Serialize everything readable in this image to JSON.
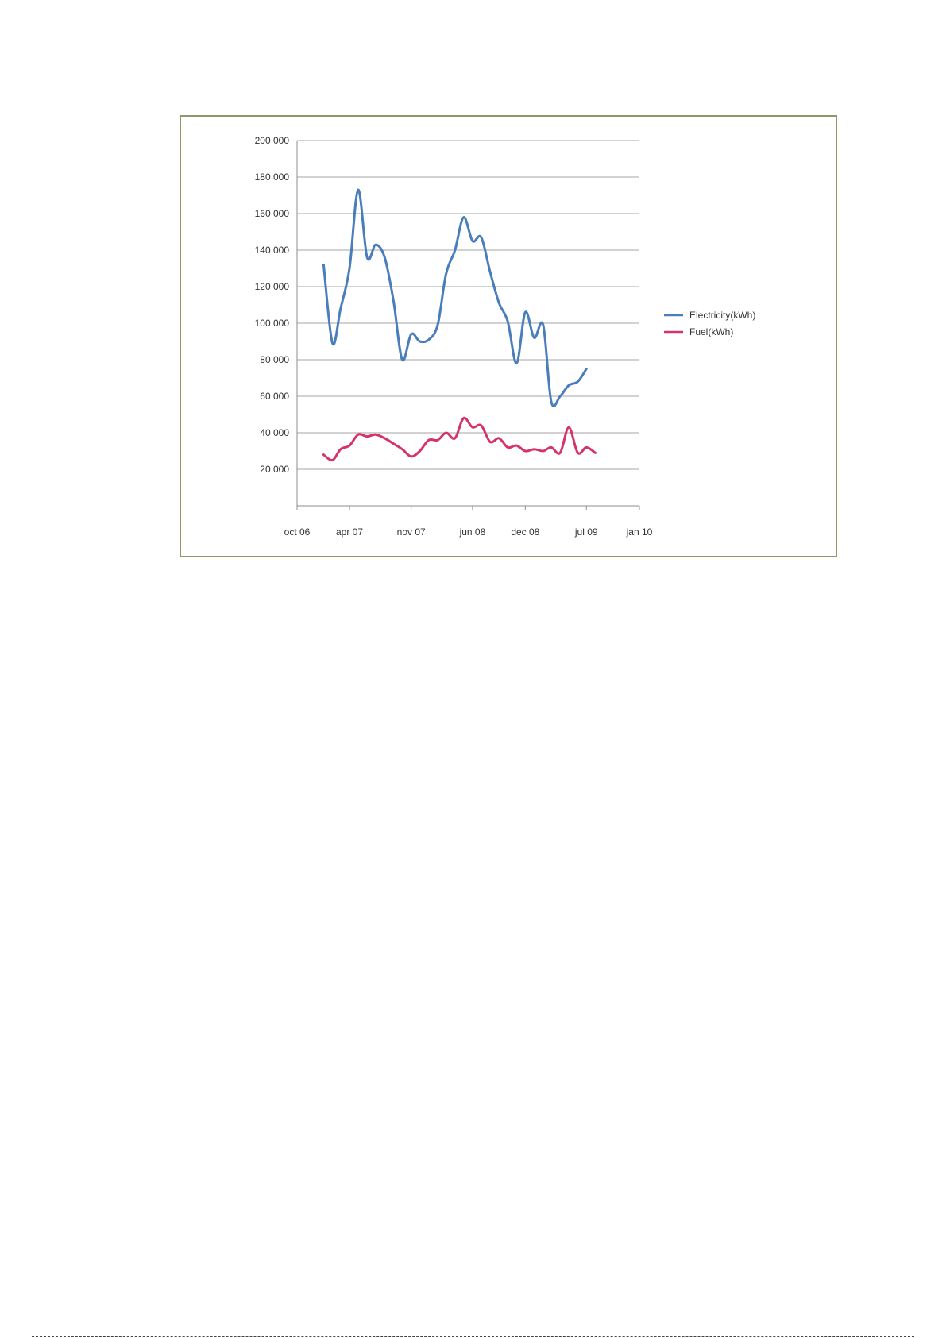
{
  "chart_data": {
    "type": "line",
    "title": "",
    "xlabel": "",
    "ylabel": "",
    "x_axis": {
      "type": "date",
      "range": [
        "2006-10-01",
        "2010-01-01"
      ],
      "ticks": [
        {
          "date": "2006-10-01",
          "label": "oct 06"
        },
        {
          "date": "2007-04-01",
          "label": "apr 07"
        },
        {
          "date": "2007-11-01",
          "label": "nov 07"
        },
        {
          "date": "2008-06-01",
          "label": "jun 08"
        },
        {
          "date": "2008-12-01",
          "label": "dec 08"
        },
        {
          "date": "2009-07-01",
          "label": "jul 09"
        },
        {
          "date": "2010-01-01",
          "label": "jan 10"
        }
      ]
    },
    "y_axis": {
      "range": [
        0,
        200000
      ],
      "ticks": [
        {
          "value": 20000,
          "label": "20 000"
        },
        {
          "value": 40000,
          "label": "40 000"
        },
        {
          "value": 60000,
          "label": "60 000"
        },
        {
          "value": 80000,
          "label": "80 000"
        },
        {
          "value": 100000,
          "label": "100 000"
        },
        {
          "value": 120000,
          "label": "120 000"
        },
        {
          "value": 140000,
          "label": "140 000"
        },
        {
          "value": 160000,
          "label": "160 000"
        },
        {
          "value": 180000,
          "label": "180 000"
        },
        {
          "value": 200000,
          "label": "200 000"
        }
      ]
    },
    "grid": "horizontal",
    "legend_position": "right",
    "series": [
      {
        "name": "Electricity(kWh)",
        "color": "#4a7ebb",
        "points": [
          {
            "x": "2007-01-01",
            "y": 132000
          },
          {
            "x": "2007-02-01",
            "y": 89000
          },
          {
            "x": "2007-03-01",
            "y": 108000
          },
          {
            "x": "2007-04-01",
            "y": 130000
          },
          {
            "x": "2007-05-01",
            "y": 173000
          },
          {
            "x": "2007-06-01",
            "y": 136000
          },
          {
            "x": "2007-07-01",
            "y": 143000
          },
          {
            "x": "2007-08-01",
            "y": 136000
          },
          {
            "x": "2007-09-01",
            "y": 112000
          },
          {
            "x": "2007-10-01",
            "y": 80000
          },
          {
            "x": "2007-11-01",
            "y": 94000
          },
          {
            "x": "2007-12-01",
            "y": 90000
          },
          {
            "x": "2008-01-01",
            "y": 91000
          },
          {
            "x": "2008-02-01",
            "y": 99000
          },
          {
            "x": "2008-03-01",
            "y": 127000
          },
          {
            "x": "2008-04-01",
            "y": 140000
          },
          {
            "x": "2008-05-01",
            "y": 158000
          },
          {
            "x": "2008-06-01",
            "y": 145000
          },
          {
            "x": "2008-07-01",
            "y": 147000
          },
          {
            "x": "2008-08-01",
            "y": 128000
          },
          {
            "x": "2008-09-01",
            "y": 111000
          },
          {
            "x": "2008-10-01",
            "y": 101000
          },
          {
            "x": "2008-11-01",
            "y": 78000
          },
          {
            "x": "2008-12-01",
            "y": 106000
          },
          {
            "x": "2009-01-01",
            "y": 92000
          },
          {
            "x": "2009-02-01",
            "y": 99000
          },
          {
            "x": "2009-03-01",
            "y": 57000
          },
          {
            "x": "2009-04-01",
            "y": 60000
          },
          {
            "x": "2009-05-01",
            "y": 66000
          },
          {
            "x": "2009-06-01",
            "y": 68000
          },
          {
            "x": "2009-07-01",
            "y": 75000
          }
        ]
      },
      {
        "name": "Fuel(kWh)",
        "color": "#d6336c",
        "points": [
          {
            "x": "2007-01-01",
            "y": 28000
          },
          {
            "x": "2007-02-01",
            "y": 25000
          },
          {
            "x": "2007-03-01",
            "y": 31000
          },
          {
            "x": "2007-04-01",
            "y": 33000
          },
          {
            "x": "2007-05-01",
            "y": 39000
          },
          {
            "x": "2007-06-01",
            "y": 38000
          },
          {
            "x": "2007-07-01",
            "y": 39000
          },
          {
            "x": "2007-08-01",
            "y": 37000
          },
          {
            "x": "2007-09-01",
            "y": 34000
          },
          {
            "x": "2007-10-01",
            "y": 31000
          },
          {
            "x": "2007-11-01",
            "y": 27000
          },
          {
            "x": "2007-12-01",
            "y": 30000
          },
          {
            "x": "2008-01-01",
            "y": 36000
          },
          {
            "x": "2008-02-01",
            "y": 36000
          },
          {
            "x": "2008-03-01",
            "y": 40000
          },
          {
            "x": "2008-04-01",
            "y": 37000
          },
          {
            "x": "2008-05-01",
            "y": 48000
          },
          {
            "x": "2008-06-01",
            "y": 43000
          },
          {
            "x": "2008-07-01",
            "y": 44000
          },
          {
            "x": "2008-08-01",
            "y": 35000
          },
          {
            "x": "2008-09-01",
            "y": 37000
          },
          {
            "x": "2008-10-01",
            "y": 32000
          },
          {
            "x": "2008-11-01",
            "y": 33000
          },
          {
            "x": "2008-12-01",
            "y": 30000
          },
          {
            "x": "2009-01-01",
            "y": 31000
          },
          {
            "x": "2009-02-01",
            "y": 30000
          },
          {
            "x": "2009-03-01",
            "y": 32000
          },
          {
            "x": "2009-04-01",
            "y": 29000
          },
          {
            "x": "2009-05-01",
            "y": 43000
          },
          {
            "x": "2009-06-01",
            "y": 29000
          },
          {
            "x": "2009-07-01",
            "y": 32000
          },
          {
            "x": "2009-08-01",
            "y": 29000
          }
        ]
      }
    ],
    "colors": {
      "frame_border": "#8b9a6a",
      "gridline": "#a6a6a6",
      "axis": "#8c8c8c"
    }
  }
}
